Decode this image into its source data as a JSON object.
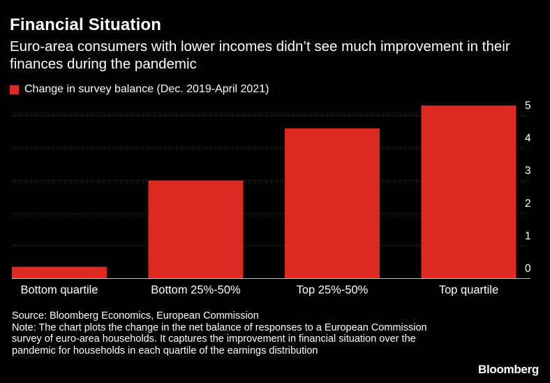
{
  "header": {
    "title": "Financial Situation",
    "subtitle": "Euro-area consumers with lower incomes didn’t see much improvement in their finances during the pandemic"
  },
  "chart_data": {
    "type": "bar",
    "title": "Financial Situation",
    "subtitle": "Euro-area consumers with lower incomes didn’t see much improvement in their finances during the pandemic",
    "categories": [
      "Bottom quartile",
      "Bottom 25%-50%",
      "Top 25%-50%",
      "Top quartile"
    ],
    "series": [
      {
        "name": "Change in survey balance (Dec. 2019-April 2021)",
        "values": [
          0.35,
          3.0,
          4.6,
          5.3
        ],
        "color": "#dd2a22"
      }
    ],
    "ylim": [
      0,
      5.5
    ],
    "yticks": [
      0,
      1,
      2,
      3,
      4,
      5
    ],
    "yaxis_side": "right",
    "grid": true,
    "grid_style": "dotted",
    "legend_position": "top-left",
    "xlabel": "",
    "ylabel": ""
  },
  "footer": {
    "source": "Source: Bloomberg Economics, European Commission",
    "note": "Note: The chart plots the change in the net balance of responses to a European Commission survey of euro-area households. It captures the improvement in financial situation over the pandemic for households in each quartile of the earnings distribution"
  },
  "brand": "Bloomberg",
  "colors": {
    "background": "#000000",
    "bar": "#dd2a22",
    "text": "#ffffff",
    "grid": "#6e6e6e",
    "axis": "#bdbdbd"
  }
}
